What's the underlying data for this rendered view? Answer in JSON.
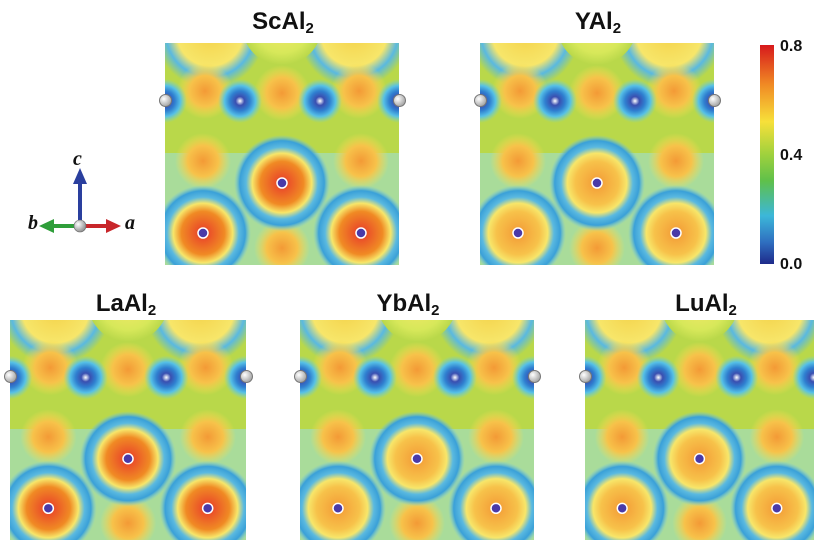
{
  "panels": [
    {
      "base": "ScAl",
      "sub": "2",
      "peak": 0.8
    },
    {
      "base": "YAl",
      "sub": "2",
      "peak": 0.66
    },
    {
      "base": "LaAl",
      "sub": "2",
      "peak": 0.8
    },
    {
      "base": "YbAl",
      "sub": "2",
      "peak": 0.66
    },
    {
      "base": "LuAl",
      "sub": "2",
      "peak": 0.66
    }
  ],
  "colorbar": {
    "ticks": [
      "0.8",
      "0.4",
      "0.0"
    ],
    "colors": [
      "#d7191c",
      "#f08a24",
      "#f7e03a",
      "#b8d93a",
      "#5fc04a",
      "#3cb7d9",
      "#2f6fc0",
      "#1e2a8a"
    ]
  },
  "axes": {
    "c": "c",
    "b": "b",
    "a": "a",
    "colors": {
      "c": "#2a3f9e",
      "b": "#2f9e3a",
      "a": "#c8262a"
    }
  }
}
